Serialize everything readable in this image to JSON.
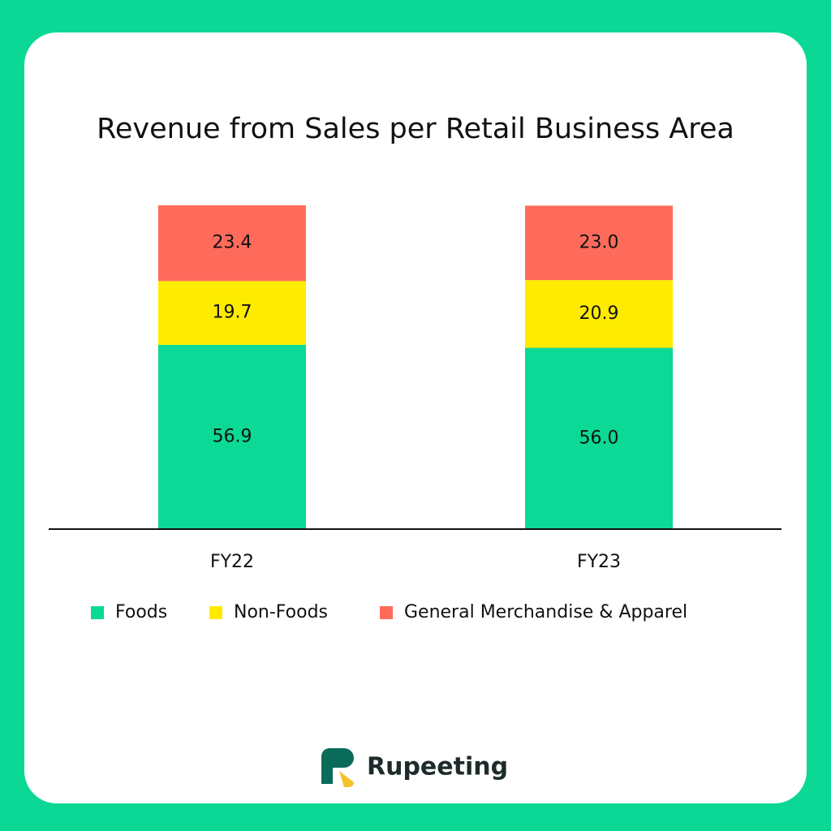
{
  "chart_data": {
    "type": "stacked-bar",
    "title": "Revenue from Sales per Retail Business Area",
    "categories": [
      "FY22",
      "FY23"
    ],
    "series": [
      {
        "name": "Foods",
        "color": "#0bd996",
        "values": [
          56.9,
          56
        ],
        "value_labels": [
          "56.9",
          "56.0"
        ]
      },
      {
        "name": "Non-Foods",
        "color": "#ffeb00",
        "values": [
          19.7,
          20.9
        ],
        "value_labels": [
          "19.7",
          "20.9"
        ]
      },
      {
        "name": "General Merchandise & Apparel",
        "color": "#ff6b5b",
        "values": [
          23.4,
          23
        ],
        "value_labels": [
          "23.4",
          "23.0"
        ]
      }
    ],
    "ylim": [
      0,
      100
    ],
    "legend": "bottom"
  },
  "brand": "Rupeeting"
}
